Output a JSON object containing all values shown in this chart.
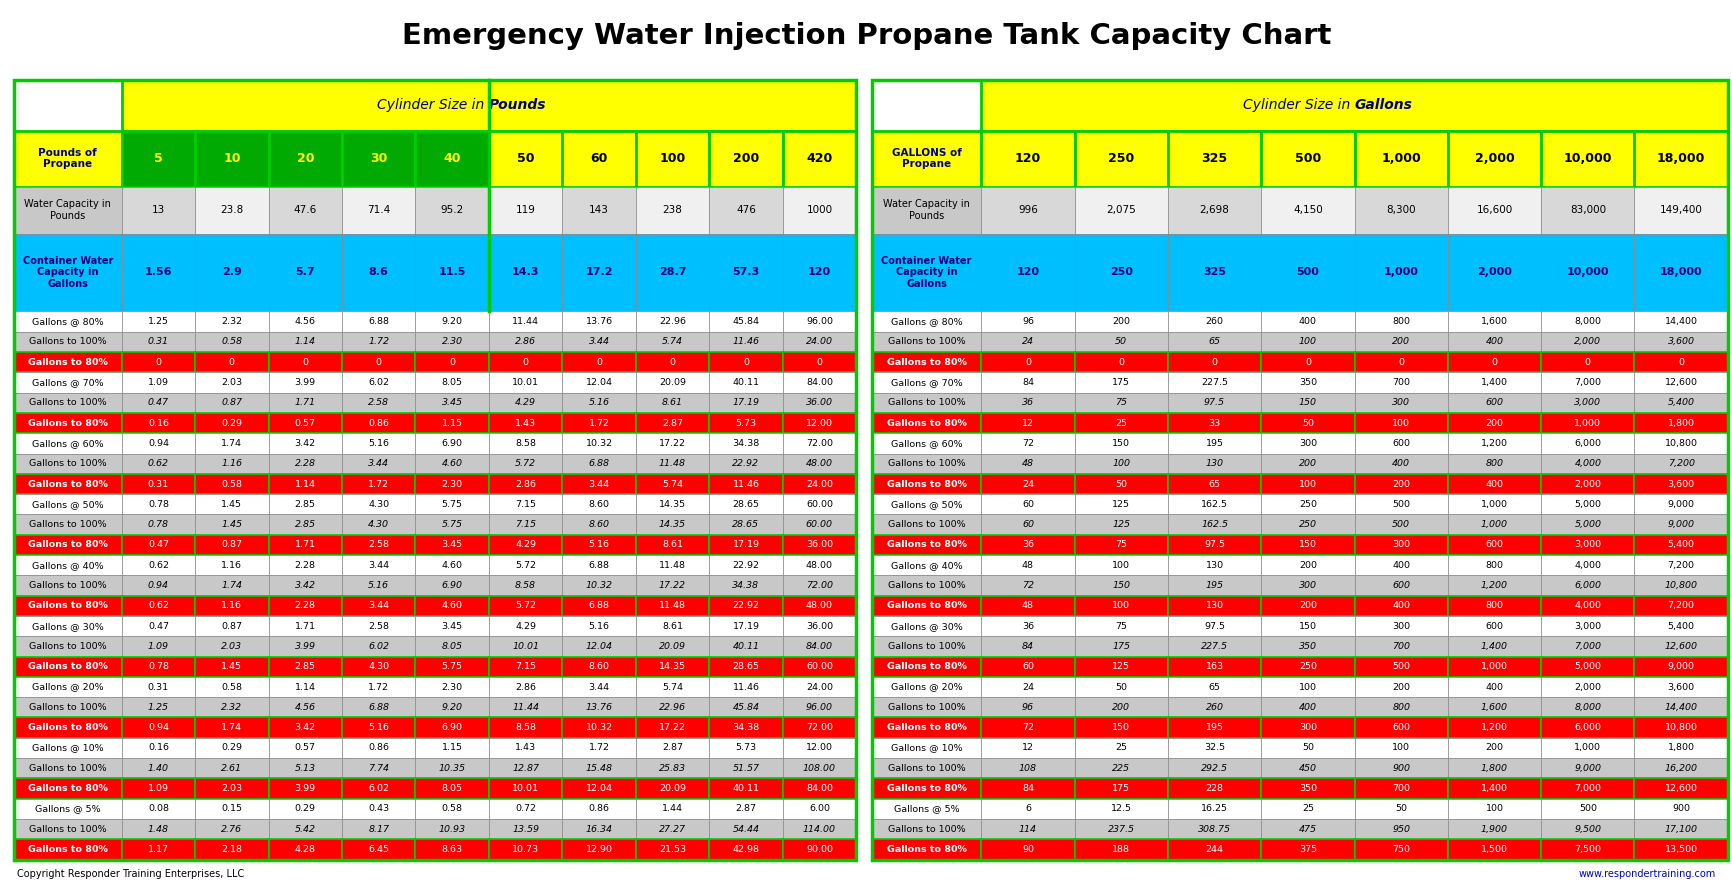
{
  "title": "Emergency Water Injection Propane Tank Capacity Chart",
  "lbs_sizes": [
    "5",
    "10",
    "20",
    "30",
    "40",
    "50",
    "60",
    "100",
    "200",
    "420"
  ],
  "gal_sizes": [
    "120",
    "250",
    "325",
    "500",
    "1,000",
    "2,000",
    "10,000",
    "18,000"
  ],
  "lbs_data": [
    [
      "13",
      "23.8",
      "47.6",
      "71.4",
      "95.2",
      "119",
      "143",
      "238",
      "476",
      "1000"
    ],
    [
      "1.56",
      "2.9",
      "5.7",
      "8.6",
      "11.5",
      "14.3",
      "17.2",
      "28.7",
      "57.3",
      "120"
    ],
    [
      "1.25",
      "2.32",
      "4.56",
      "6.88",
      "9.20",
      "11.44",
      "13.76",
      "22.96",
      "45.84",
      "96.00"
    ],
    [
      "0.31",
      "0.58",
      "1.14",
      "1.72",
      "2.30",
      "2.86",
      "3.44",
      "5.74",
      "11.46",
      "24.00"
    ],
    [
      "0",
      "0",
      "0",
      "0",
      "0",
      "0",
      "0",
      "0",
      "0",
      "0"
    ],
    [
      "1.09",
      "2.03",
      "3.99",
      "6.02",
      "8.05",
      "10.01",
      "12.04",
      "20.09",
      "40.11",
      "84.00"
    ],
    [
      "0.47",
      "0.87",
      "1.71",
      "2.58",
      "3.45",
      "4.29",
      "5.16",
      "8.61",
      "17.19",
      "36.00"
    ],
    [
      "0.16",
      "0.29",
      "0.57",
      "0.86",
      "1.15",
      "1.43",
      "1.72",
      "2.87",
      "5.73",
      "12.00"
    ],
    [
      "0.94",
      "1.74",
      "3.42",
      "5.16",
      "6.90",
      "8.58",
      "10.32",
      "17.22",
      "34.38",
      "72.00"
    ],
    [
      "0.62",
      "1.16",
      "2.28",
      "3.44",
      "4.60",
      "5.72",
      "6.88",
      "11.48",
      "22.92",
      "48.00"
    ],
    [
      "0.31",
      "0.58",
      "1.14",
      "1.72",
      "2.30",
      "2.86",
      "3.44",
      "5.74",
      "11.46",
      "24.00"
    ],
    [
      "0.78",
      "1.45",
      "2.85",
      "4.30",
      "5.75",
      "7.15",
      "8.60",
      "14.35",
      "28.65",
      "60.00"
    ],
    [
      "0.78",
      "1.45",
      "2.85",
      "4.30",
      "5.75",
      "7.15",
      "8.60",
      "14.35",
      "28.65",
      "60.00"
    ],
    [
      "0.47",
      "0.87",
      "1.71",
      "2.58",
      "3.45",
      "4.29",
      "5.16",
      "8.61",
      "17.19",
      "36.00"
    ],
    [
      "0.62",
      "1.16",
      "2.28",
      "3.44",
      "4.60",
      "5.72",
      "6.88",
      "11.48",
      "22.92",
      "48.00"
    ],
    [
      "0.94",
      "1.74",
      "3.42",
      "5.16",
      "6.90",
      "8.58",
      "10.32",
      "17.22",
      "34.38",
      "72.00"
    ],
    [
      "0.62",
      "1.16",
      "2.28",
      "3.44",
      "4.60",
      "5.72",
      "6.88",
      "11.48",
      "22.92",
      "48.00"
    ],
    [
      "0.47",
      "0.87",
      "1.71",
      "2.58",
      "3.45",
      "4.29",
      "5.16",
      "8.61",
      "17.19",
      "36.00"
    ],
    [
      "1.09",
      "2.03",
      "3.99",
      "6.02",
      "8.05",
      "10.01",
      "12.04",
      "20.09",
      "40.11",
      "84.00"
    ],
    [
      "0.78",
      "1.45",
      "2.85",
      "4.30",
      "5.75",
      "7.15",
      "8.60",
      "14.35",
      "28.65",
      "60.00"
    ],
    [
      "0.31",
      "0.58",
      "1.14",
      "1.72",
      "2.30",
      "2.86",
      "3.44",
      "5.74",
      "11.46",
      "24.00"
    ],
    [
      "1.25",
      "2.32",
      "4.56",
      "6.88",
      "9.20",
      "11.44",
      "13.76",
      "22.96",
      "45.84",
      "96.00"
    ],
    [
      "0.94",
      "1.74",
      "3.42",
      "5.16",
      "6.90",
      "8.58",
      "10.32",
      "17.22",
      "34.38",
      "72.00"
    ],
    [
      "0.16",
      "0.29",
      "0.57",
      "0.86",
      "1.15",
      "1.43",
      "1.72",
      "2.87",
      "5.73",
      "12.00"
    ],
    [
      "1.40",
      "2.61",
      "5.13",
      "7.74",
      "10.35",
      "12.87",
      "15.48",
      "25.83",
      "51.57",
      "108.00"
    ],
    [
      "1.09",
      "2.03",
      "3.99",
      "6.02",
      "8.05",
      "10.01",
      "12.04",
      "20.09",
      "40.11",
      "84.00"
    ],
    [
      "0.08",
      "0.15",
      "0.29",
      "0.43",
      "0.58",
      "0.72",
      "0.86",
      "1.44",
      "2.87",
      "6.00"
    ],
    [
      "1.48",
      "2.76",
      "5.42",
      "8.17",
      "10.93",
      "13.59",
      "16.34",
      "27.27",
      "54.44",
      "114.00"
    ],
    [
      "1.17",
      "2.18",
      "4.28",
      "6.45",
      "8.63",
      "10.73",
      "12.90",
      "21.53",
      "42.98",
      "90.00"
    ]
  ],
  "gal_data": [
    [
      "996",
      "2,075",
      "2,698",
      "4,150",
      "8,300",
      "16,600",
      "83,000",
      "149,400"
    ],
    [
      "120",
      "250",
      "325",
      "500",
      "1,000",
      "2,000",
      "10,000",
      "18,000"
    ],
    [
      "96",
      "200",
      "260",
      "400",
      "800",
      "1,600",
      "8,000",
      "14,400"
    ],
    [
      "24",
      "50",
      "65",
      "100",
      "200",
      "400",
      "2,000",
      "3,600"
    ],
    [
      "0",
      "0",
      "0",
      "0",
      "0",
      "0",
      "0",
      "0"
    ],
    [
      "84",
      "175",
      "227.5",
      "350",
      "700",
      "1,400",
      "7,000",
      "12,600"
    ],
    [
      "36",
      "75",
      "97.5",
      "150",
      "300",
      "600",
      "3,000",
      "5,400"
    ],
    [
      "12",
      "25",
      "33",
      "50",
      "100",
      "200",
      "1,000",
      "1,800"
    ],
    [
      "72",
      "150",
      "195",
      "300",
      "600",
      "1,200",
      "6,000",
      "10,800"
    ],
    [
      "48",
      "100",
      "130",
      "200",
      "400",
      "800",
      "4,000",
      "7,200"
    ],
    [
      "24",
      "50",
      "65",
      "100",
      "200",
      "400",
      "2,000",
      "3,600"
    ],
    [
      "60",
      "125",
      "162.5",
      "250",
      "500",
      "1,000",
      "5,000",
      "9,000"
    ],
    [
      "60",
      "125",
      "162.5",
      "250",
      "500",
      "1,000",
      "5,000",
      "9,000"
    ],
    [
      "36",
      "75",
      "97.5",
      "150",
      "300",
      "600",
      "3,000",
      "5,400"
    ],
    [
      "48",
      "100",
      "130",
      "200",
      "400",
      "800",
      "4,000",
      "7,200"
    ],
    [
      "72",
      "150",
      "195",
      "300",
      "600",
      "1,200",
      "6,000",
      "10,800"
    ],
    [
      "48",
      "100",
      "130",
      "200",
      "400",
      "800",
      "4,000",
      "7,200"
    ],
    [
      "36",
      "75",
      "97.5",
      "150",
      "300",
      "600",
      "3,000",
      "5,400"
    ],
    [
      "84",
      "175",
      "227.5",
      "350",
      "700",
      "1,400",
      "7,000",
      "12,600"
    ],
    [
      "60",
      "125",
      "163",
      "250",
      "500",
      "1,000",
      "5,000",
      "9,000"
    ],
    [
      "24",
      "50",
      "65",
      "100",
      "200",
      "400",
      "2,000",
      "3,600"
    ],
    [
      "96",
      "200",
      "260",
      "400",
      "800",
      "1,600",
      "8,000",
      "14,400"
    ],
    [
      "72",
      "150",
      "195",
      "300",
      "600",
      "1,200",
      "6,000",
      "10,800"
    ],
    [
      "12",
      "25",
      "32.5",
      "50",
      "100",
      "200",
      "1,000",
      "1,800"
    ],
    [
      "108",
      "225",
      "292.5",
      "450",
      "900",
      "1,800",
      "9,000",
      "16,200"
    ],
    [
      "84",
      "175",
      "228",
      "350",
      "700",
      "1,400",
      "7,000",
      "12,600"
    ],
    [
      "6",
      "12.5",
      "16.25",
      "25",
      "50",
      "100",
      "500",
      "900"
    ],
    [
      "114",
      "237.5",
      "308.75",
      "475",
      "950",
      "1,900",
      "9,500",
      "17,100"
    ],
    [
      "90",
      "188",
      "244",
      "375",
      "750",
      "1,500",
      "7,500",
      "13,500"
    ]
  ],
  "copyright": "Copyright Responder Training Enterprises, LLC",
  "website": "www.respondertraining.com",
  "title_color": "#000000",
  "header_yellow_bg": "#FFFF00",
  "header_yellow_text": "#000080",
  "col_header_green_bg": "#00AA00",
  "col_header_yellow_bg": "#FFFF00",
  "col_header_text": "#000000",
  "row_label_yellow_bg": "#FFFF00",
  "row_label_yellow_text": "#000080",
  "water_cap_bg": "#C8C8C8",
  "water_cap_text": "#000000",
  "container_water_bg": "#00BFFF",
  "container_water_text": "#000080",
  "red_row_bg": "#FF0000",
  "red_row_text": "#FFFFFF",
  "white_row_bg": "#FFFFFF",
  "gray_row_bg": "#C8C8C8",
  "data_text": "#000000",
  "italic_text_color": "#444444",
  "green_border_color": "#00CC00",
  "gray_border_color": "#888888"
}
